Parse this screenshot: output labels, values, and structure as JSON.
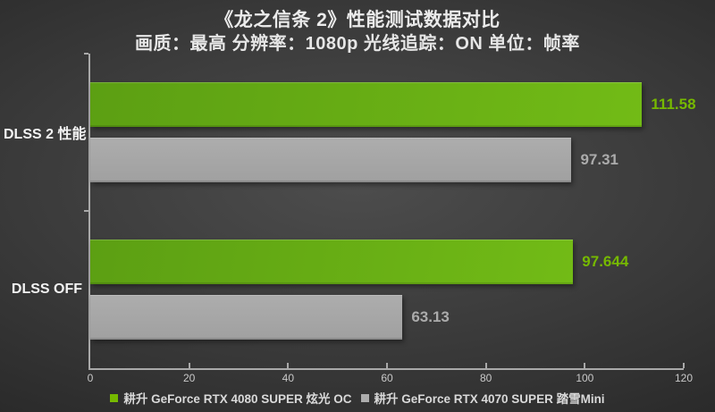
{
  "header": {
    "title": "《龙之信条 2》性能测试数据对比",
    "subtitle": "画质：最高 分辨率：1080p 光线追踪：ON 单位：帧率"
  },
  "colors": {
    "axis": "#a9a9a9",
    "nvidia_green": "#76b900",
    "green_bar_gradient": [
      "#5c9f13",
      "#72bb16"
    ],
    "gray_bar_gradient": [
      "#adadad",
      "#a0a0a0"
    ],
    "green_value_text": "#76b900",
    "gray_value_text": "#ababab"
  },
  "chart_data": {
    "type": "bar",
    "orientation": "horizontal",
    "title": "《龙之信条 2》性能测试数据对比",
    "subtitle": "画质：最高 分辨率：1080p 光线追踪：ON 单位：帧率",
    "categories": [
      "DLSS 2 性能",
      "DLSS OFF"
    ],
    "series": [
      {
        "name": "耕升 GeForce RTX 4080 SUPER 炫光 OC",
        "values": [
          111.58,
          97.644
        ],
        "labels": [
          "111.58",
          "97.644"
        ],
        "color_key": "green"
      },
      {
        "name": "耕升 GeForce RTX 4070 SUPER 踏雪Mini",
        "values": [
          97.31,
          63.13
        ],
        "labels": [
          "97.31",
          "63.13"
        ],
        "color_key": "gray"
      }
    ],
    "xlim": [
      0,
      120
    ],
    "xticks": [
      "0",
      "20",
      "40",
      "60",
      "80",
      "100",
      "120"
    ],
    "xtick_values": [
      0,
      20,
      40,
      60,
      80,
      100,
      120
    ],
    "grid": false,
    "legend_position": "bottom"
  }
}
